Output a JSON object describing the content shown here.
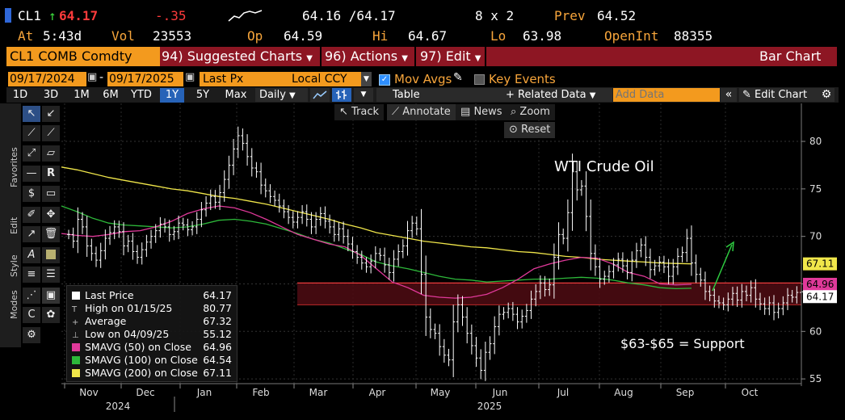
{
  "quote": {
    "ticker": "CL1",
    "last": "64.17",
    "change": "-.35",
    "bid_ask": "64.16 /64.17",
    "size": "8 x 2",
    "prev_label": "Prev",
    "prev": "64.52",
    "at_label": "At",
    "time": "5:43d",
    "vol_label": "Vol",
    "vol": "23553",
    "open_label": "Op",
    "open": "64.59",
    "high_label": "Hi",
    "high": "64.67",
    "low_label": "Lo",
    "low": "63.98",
    "oi_label": "OpenInt",
    "oi": "88355"
  },
  "menubar": {
    "security": "CL1 COMB Comdty",
    "suggested": "94) Suggested Charts",
    "actions": "96) Actions",
    "edit": "97) Edit",
    "chart_type": "Bar Chart"
  },
  "controls": {
    "start_date": "09/17/2024",
    "end_date": "09/17/2025",
    "field": "Last Px",
    "currency": "Local CCY",
    "mov_avgs": "Mov Avgs",
    "key_events": "Key Events"
  },
  "toolbar": {
    "ranges": [
      "1D",
      "3D",
      "1M",
      "6M",
      "YTD",
      "1Y",
      "5Y",
      "Max"
    ],
    "selected_range": "1Y",
    "frequency": "Daily",
    "table": "Table",
    "related": "+ Related Data",
    "add_data_placeholder": "Add Data",
    "edit_chart": "Edit Chart"
  },
  "overlay_buttons": {
    "track": "Track",
    "annotate": "Annotate",
    "news": "News",
    "zoom": "Zoom",
    "reset": "Reset"
  },
  "sidebar": {
    "favorites": "Favorites",
    "edit": "Edit",
    "style": "Style",
    "modes": "Modes"
  },
  "legend": {
    "rows": [
      {
        "label": "Last Price",
        "value": "64.17",
        "color": "#ffffff"
      },
      {
        "label": "High on 01/15/25",
        "value": "80.77",
        "color": "#ffffff"
      },
      {
        "label": "Average",
        "value": "67.32",
        "color": "#ffffff"
      },
      {
        "label": "Low on 04/09/25",
        "value": "55.12",
        "color": "#ffffff"
      },
      {
        "label": "SMAVG (50)  on Close",
        "value": "64.96",
        "color": "#e0399a"
      },
      {
        "label": "SMAVG (100)  on Close",
        "value": "64.54",
        "color": "#2db83a"
      },
      {
        "label": "SMAVG (200)  on Close",
        "value": "67.11",
        "color": "#f0e64a"
      }
    ]
  },
  "chart_data": {
    "type": "bar",
    "title": "WTI Crude Oil",
    "annotation": "$63-$65 = Support",
    "x_labels": [
      "Nov",
      "Dec",
      "Jan",
      "Feb",
      "Mar",
      "Apr",
      "May",
      "Jun",
      "Jul",
      "Aug",
      "Sep",
      "Oct"
    ],
    "year_labels": [
      "2024",
      "2025"
    ],
    "y_ticks": [
      55,
      60,
      65,
      70,
      75,
      80
    ],
    "ylim": [
      54.5,
      84
    ],
    "support_band": [
      62.8,
      65.1
    ],
    "price_labels": [
      {
        "text": "67.11",
        "value": 67.11,
        "color": "#f0e64a"
      },
      {
        "text": "64.96",
        "value": 64.96,
        "color": "#e0399a"
      },
      {
        "text": "64.17",
        "value": 64.17,
        "color": "#ffffff"
      }
    ],
    "close_series": [
      70.2,
      69.5,
      71.8,
      71.0,
      69.0,
      68.2,
      67.5,
      68.5,
      69.8,
      70.4,
      71.0,
      70.5,
      69.0,
      69.5,
      68.4,
      67.8,
      68.6,
      69.4,
      70.0,
      70.6,
      71.3,
      71.0,
      70.2,
      70.5,
      71.4,
      71.2,
      70.7,
      71.0,
      71.8,
      72.8,
      73.5,
      74.2,
      73.6,
      74.6,
      76.0,
      77.5,
      79.2,
      80.6,
      79.8,
      78.4,
      77.2,
      76.8,
      75.4,
      74.8,
      74.2,
      73.8,
      73.2,
      72.6,
      72.0,
      71.5,
      72.0,
      72.6,
      71.8,
      71.0,
      71.8,
      72.4,
      71.6,
      71.0,
      70.2,
      70.8,
      70.0,
      69.2,
      68.4,
      67.8,
      67.2,
      66.8,
      67.4,
      68.2,
      68.0,
      67.0,
      66.2,
      67.6,
      68.4,
      69.0,
      70.6,
      71.4,
      70.8,
      66.0,
      61.5,
      60.2,
      59.8,
      58.4,
      57.5,
      57.0,
      61.0,
      62.8,
      61.5,
      59.8,
      58.5,
      57.2,
      55.9,
      57.8,
      58.7,
      60.5,
      61.8,
      62.0,
      62.4,
      61.8,
      61.0,
      61.6,
      62.2,
      63.4,
      64.2,
      65.1,
      64.4,
      64.9,
      67.8,
      70.2,
      69.8,
      72.5,
      76.8,
      74.9,
      75.3,
      72.1,
      68.2,
      66.8,
      65.5,
      65.8,
      66.3,
      67.0,
      67.6,
      66.9,
      66.2,
      67.5,
      68.5,
      69.1,
      67.8,
      66.5,
      66.9,
      67.3,
      66.8,
      65.8,
      66.8,
      67.9,
      68.3,
      69.8,
      67.2,
      66.0,
      65.4,
      64.2,
      63.8,
      63.2,
      63.0,
      62.8,
      63.4,
      64.0,
      63.3,
      64.2,
      63.8,
      64.6,
      63.4,
      62.9,
      62.4,
      63.0,
      62.0,
      62.4,
      63.0,
      63.8,
      63.6,
      64.1,
      64.17
    ],
    "sma50_series": [
      70.3,
      70.1,
      70.0,
      70.2,
      70.5,
      70.6,
      71.0,
      71.6,
      72.4,
      72.9,
      73.2,
      73.0,
      72.5,
      71.8,
      71.0,
      70.2,
      69.7,
      69.2,
      68.9,
      68.0,
      66.6,
      65.2,
      64.6,
      63.8,
      63.6,
      63.5,
      63.6,
      63.9,
      64.6,
      65.5,
      66.6,
      67.1,
      67.5,
      67.8,
      67.7,
      67.1,
      66.2,
      65.8,
      65.0,
      64.9,
      64.96
    ],
    "sma100_series": [
      73.2,
      72.6,
      71.9,
      71.4,
      71.2,
      71.1,
      71.0,
      70.9,
      71.0,
      71.3,
      71.7,
      71.8,
      71.6,
      71.3,
      70.8,
      70.3,
      69.7,
      69.3,
      68.7,
      68.1,
      67.3,
      66.9,
      66.6,
      66.2,
      65.8,
      65.5,
      65.4,
      65.2,
      65.3,
      65.4,
      65.5,
      65.5,
      65.6,
      65.7,
      65.6,
      65.4,
      65.1,
      64.9,
      64.6,
      64.5,
      64.54
    ],
    "sma200_series": [
      77.3,
      77.0,
      76.6,
      76.2,
      75.9,
      75.6,
      75.3,
      75.0,
      74.8,
      74.5,
      74.2,
      74.0,
      73.7,
      73.4,
      73.0,
      72.6,
      72.2,
      71.8,
      71.3,
      70.9,
      70.4,
      70.1,
      69.8,
      69.5,
      69.3,
      69.1,
      68.9,
      68.8,
      68.6,
      68.4,
      68.3,
      68.1,
      67.9,
      67.8,
      67.6,
      67.5,
      67.4,
      67.3,
      67.2,
      67.15,
      67.11
    ],
    "colors": {
      "price": "#ffffff",
      "sma50": "#e0399a",
      "sma100": "#2db83a",
      "sma200": "#f0e64a",
      "band": "#4a0b12",
      "band_line": "#ff4040",
      "arrow": "#2ecc40"
    }
  }
}
